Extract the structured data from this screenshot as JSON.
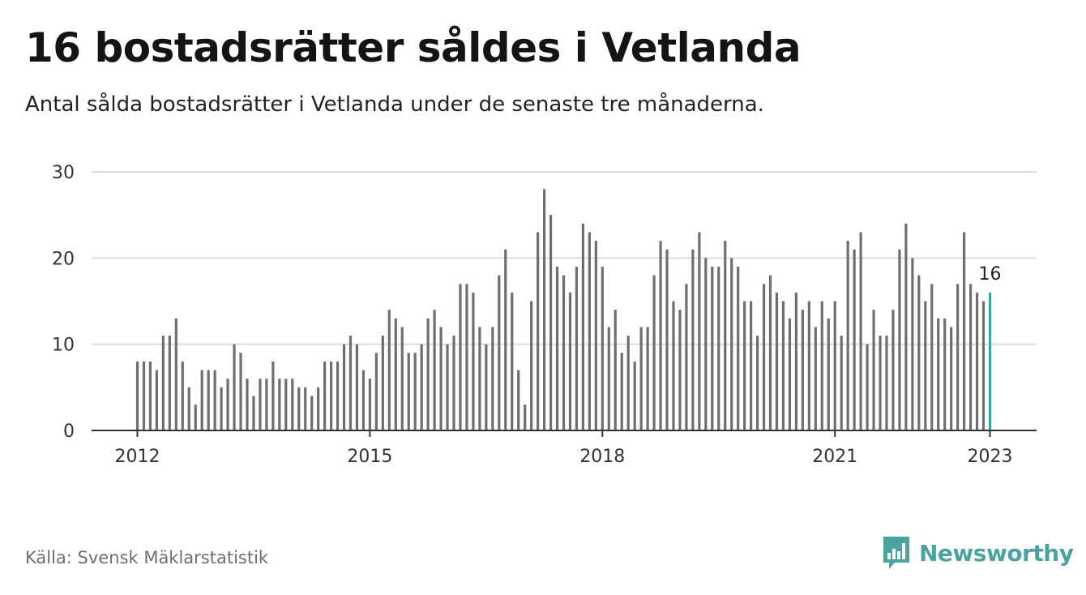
{
  "title": "16 bostadsrätter såldes i Vetlanda",
  "subtitle": "Antal sålda bostadsrätter i Vetlanda under de senaste tre månaderna.",
  "source": "Källa: Svensk Mäklarstatistik",
  "brand": {
    "name": "Newsworthy",
    "logo_icon": "bar-chart-speech-bubble-icon"
  },
  "colors": {
    "bar": "#6e6e73",
    "highlight": "#3aa6a1",
    "grid": "#dddddd",
    "axis": "#333333"
  },
  "chart_data": {
    "type": "bar",
    "x_axis_ticks": [
      "2012",
      "2015",
      "2018",
      "2021",
      "2023"
    ],
    "y_axis_ticks": [
      "0",
      "10",
      "20",
      "30"
    ],
    "ylim": [
      0,
      30
    ],
    "grid": true,
    "first_period": "2012-01",
    "last_period": "2023-01",
    "values": [
      8,
      8,
      8,
      7,
      11,
      11,
      13,
      8,
      5,
      3,
      7,
      7,
      7,
      5,
      6,
      10,
      9,
      6,
      4,
      6,
      6,
      8,
      6,
      6,
      6,
      5,
      5,
      4,
      5,
      8,
      8,
      8,
      10,
      11,
      10,
      7,
      6,
      9,
      11,
      14,
      13,
      12,
      9,
      9,
      10,
      13,
      14,
      12,
      10,
      11,
      17,
      17,
      16,
      12,
      10,
      12,
      18,
      21,
      16,
      7,
      3,
      15,
      23,
      28,
      25,
      19,
      18,
      16,
      19,
      24,
      23,
      22,
      19,
      12,
      14,
      9,
      11,
      8,
      12,
      12,
      18,
      22,
      21,
      15,
      14,
      17,
      21,
      23,
      20,
      19,
      19,
      22,
      20,
      19,
      15,
      15,
      11,
      17,
      18,
      16,
      15,
      13,
      16,
      14,
      15,
      12,
      15,
      13,
      15,
      11,
      22,
      21,
      23,
      10,
      14,
      11,
      11,
      14,
      21,
      24,
      20,
      18,
      15,
      17,
      13,
      13,
      12,
      17,
      23,
      17,
      16,
      15,
      16
    ],
    "highlight_last": true,
    "last_value_label": "16"
  }
}
